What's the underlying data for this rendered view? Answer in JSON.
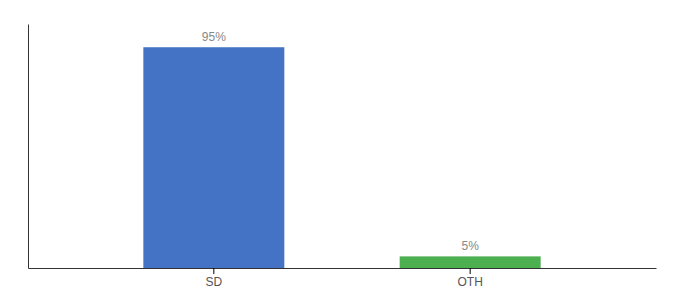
{
  "chart_data": {
    "type": "bar",
    "categories": [
      "SD",
      "OTH"
    ],
    "values": [
      95,
      5
    ],
    "value_labels": [
      "95%",
      "5%"
    ],
    "colors": [
      "#4472c4",
      "#4caf50"
    ],
    "ylim": [
      0,
      105
    ],
    "yticks": [],
    "data_labels": true,
    "tick_labels": "x",
    "grid": false
  }
}
